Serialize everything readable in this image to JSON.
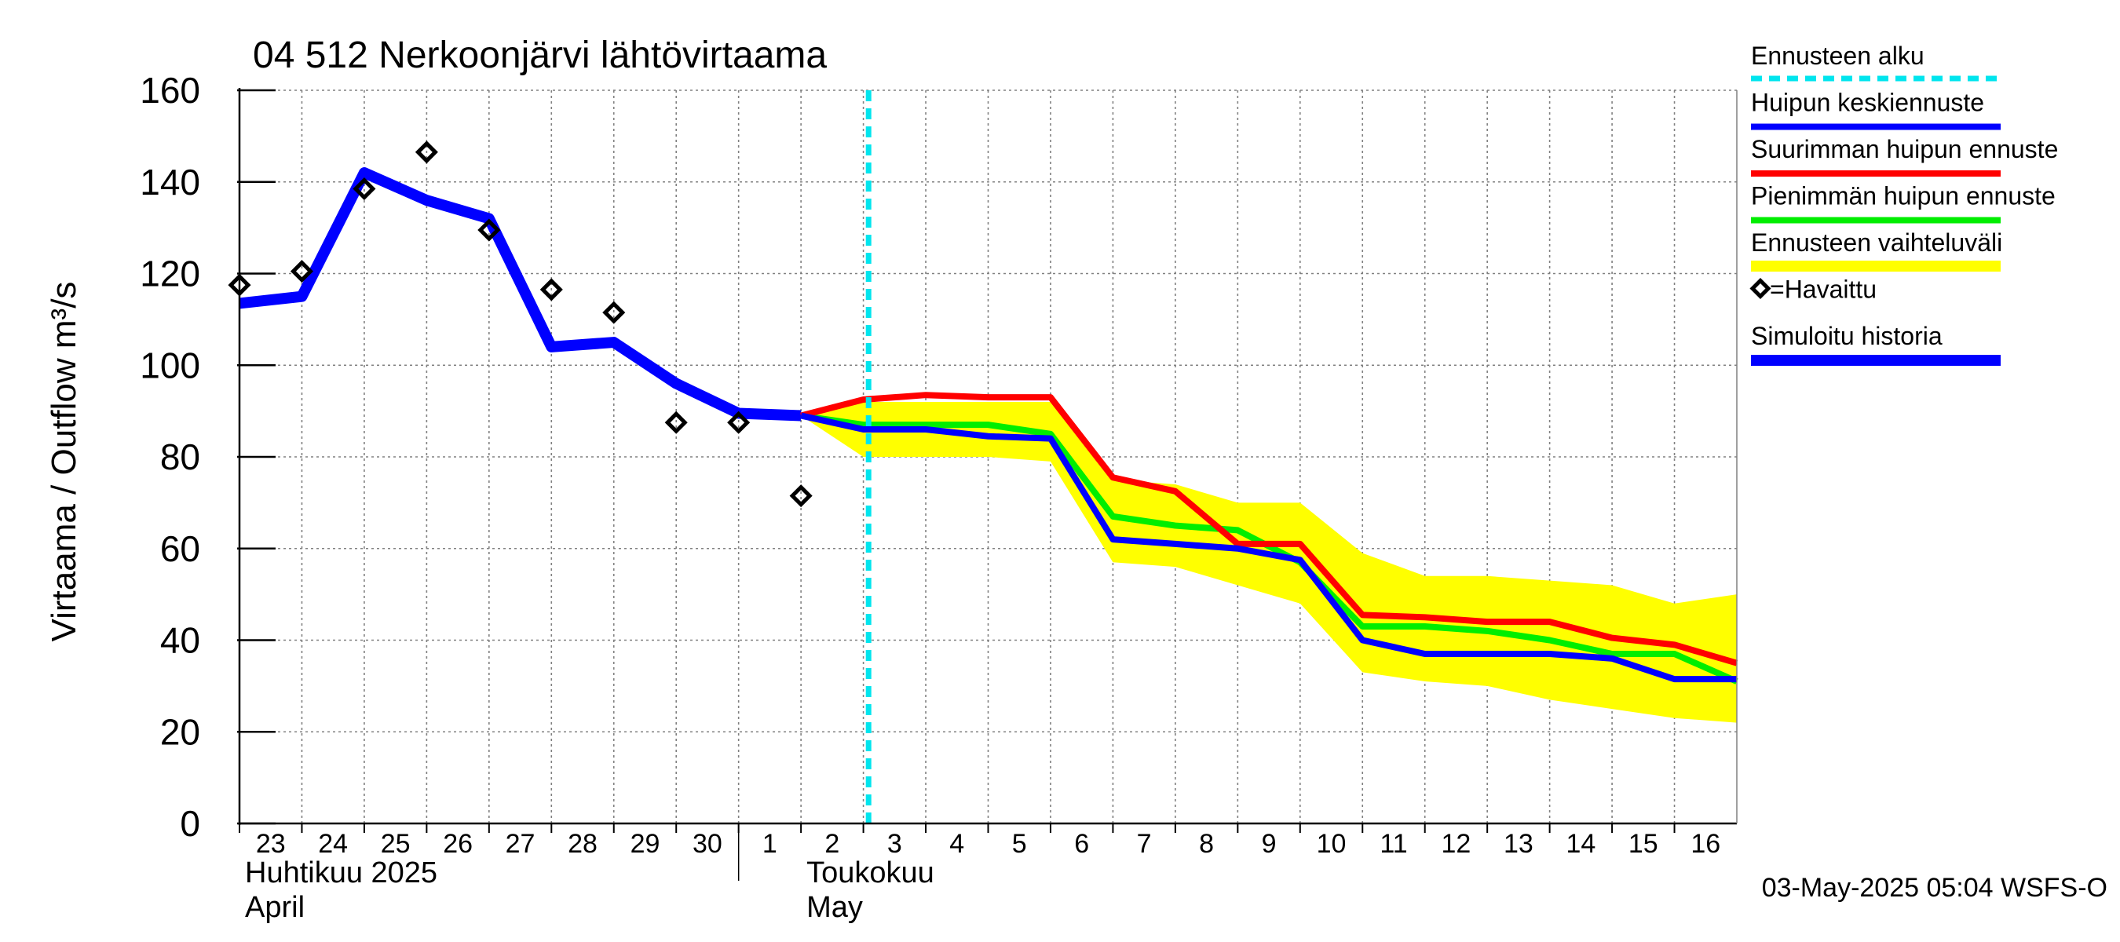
{
  "chart_data": {
    "type": "line",
    "title": "04 512 Nerkoonjärvi lähtövirtaama",
    "ylabel": "Virtaama / Outflow    m³/s",
    "ylim": [
      0,
      160
    ],
    "yticks": [
      0,
      20,
      40,
      60,
      80,
      100,
      120,
      140,
      160
    ],
    "x_start": "2025-04-23",
    "x_end": "2025-05-17",
    "day_ticks": [
      {
        "date": "2025-04-23",
        "label": "23"
      },
      {
        "date": "2025-04-24",
        "label": "24"
      },
      {
        "date": "2025-04-25",
        "label": "25"
      },
      {
        "date": "2025-04-26",
        "label": "26"
      },
      {
        "date": "2025-04-27",
        "label": "27"
      },
      {
        "date": "2025-04-28",
        "label": "28"
      },
      {
        "date": "2025-04-29",
        "label": "29"
      },
      {
        "date": "2025-04-30",
        "label": "30"
      },
      {
        "date": "2025-05-01",
        "label": "1"
      },
      {
        "date": "2025-05-02",
        "label": "2"
      },
      {
        "date": "2025-05-03",
        "label": "3"
      },
      {
        "date": "2025-05-04",
        "label": "4"
      },
      {
        "date": "2025-05-05",
        "label": "5"
      },
      {
        "date": "2025-05-06",
        "label": "6"
      },
      {
        "date": "2025-05-07",
        "label": "7"
      },
      {
        "date": "2025-05-08",
        "label": "8"
      },
      {
        "date": "2025-05-09",
        "label": "9"
      },
      {
        "date": "2025-05-10",
        "label": "10"
      },
      {
        "date": "2025-05-11",
        "label": "11"
      },
      {
        "date": "2025-05-12",
        "label": "12"
      },
      {
        "date": "2025-05-13",
        "label": "13"
      },
      {
        "date": "2025-05-14",
        "label": "14"
      },
      {
        "date": "2025-05-15",
        "label": "15"
      },
      {
        "date": "2025-05-16",
        "label": "16"
      }
    ],
    "month_labels": [
      {
        "date": "2025-04-23",
        "line1": "Huhtikuu  2025",
        "line2": "April"
      },
      {
        "date": "2025-05-02",
        "line1": "Toukokuu",
        "line2": "May"
      }
    ],
    "month_boundary": "2025-05-01",
    "forecast_start": "2025-05-03T02:00",
    "grid": true,
    "legend_position": "right",
    "series": [
      {
        "name": "Ennusteen vaihteluväli",
        "kind": "band",
        "color": "#ffff00",
        "x": [
          "2025-05-02",
          "2025-05-03",
          "2025-05-04",
          "2025-05-05",
          "2025-05-06",
          "2025-05-07",
          "2025-05-08",
          "2025-05-09",
          "2025-05-10",
          "2025-05-11",
          "2025-05-12",
          "2025-05-13",
          "2025-05-14",
          "2025-05-15",
          "2025-05-16",
          "2025-05-17"
        ],
        "upper": [
          89,
          92,
          92,
          92,
          92,
          75,
          74,
          70,
          70,
          59,
          54,
          54,
          53,
          52,
          48,
          50
        ],
        "lower": [
          89,
          80,
          80,
          80,
          79,
          57,
          56,
          52,
          48,
          33,
          31,
          30,
          27,
          25,
          23,
          22
        ]
      },
      {
        "name": "Simuloitu historia",
        "kind": "line",
        "color": "#0000ff",
        "width": 14,
        "x": [
          "2025-04-23",
          "2025-04-24",
          "2025-04-25",
          "2025-04-26",
          "2025-04-27",
          "2025-04-28",
          "2025-04-29",
          "2025-04-30",
          "2025-05-01",
          "2025-05-02"
        ],
        "values": [
          113.5,
          115,
          142,
          136,
          132,
          104,
          105,
          96,
          89.5,
          89
        ]
      },
      {
        "name": "Pienimmän huipun ennuste",
        "kind": "line",
        "color": "#00ee00",
        "width": 8,
        "x": [
          "2025-05-02",
          "2025-05-03",
          "2025-05-04",
          "2025-05-05",
          "2025-05-06",
          "2025-05-07",
          "2025-05-08",
          "2025-05-09",
          "2025-05-10",
          "2025-05-11",
          "2025-05-12",
          "2025-05-13",
          "2025-05-14",
          "2025-05-15",
          "2025-05-16",
          "2025-05-17"
        ],
        "values": [
          89,
          87,
          87,
          87,
          85,
          67,
          65,
          64,
          57,
          43,
          43,
          42,
          40,
          37,
          37,
          31
        ]
      },
      {
        "name": "Suurimman huipun ennuste",
        "kind": "line",
        "color": "#ff0000",
        "width": 8,
        "x": [
          "2025-05-02",
          "2025-05-03",
          "2025-05-04",
          "2025-05-05",
          "2025-05-06",
          "2025-05-07",
          "2025-05-08",
          "2025-05-09",
          "2025-05-10",
          "2025-05-11",
          "2025-05-12",
          "2025-05-13",
          "2025-05-14",
          "2025-05-15",
          "2025-05-16",
          "2025-05-17"
        ],
        "values": [
          89,
          92.5,
          93.5,
          93,
          93,
          75.5,
          72.5,
          61,
          61,
          45.5,
          45,
          44,
          44,
          40.5,
          39,
          35
        ]
      },
      {
        "name": "Huipun keskiennuste",
        "kind": "line",
        "color": "#0000ff",
        "width": 8,
        "x": [
          "2025-05-02",
          "2025-05-03",
          "2025-05-04",
          "2025-05-05",
          "2025-05-06",
          "2025-05-07",
          "2025-05-08",
          "2025-05-09",
          "2025-05-10",
          "2025-05-11",
          "2025-05-12",
          "2025-05-13",
          "2025-05-14",
          "2025-05-15",
          "2025-05-16",
          "2025-05-17"
        ],
        "values": [
          89,
          86,
          86,
          84.5,
          84,
          62,
          61,
          60,
          57.5,
          40,
          37,
          37,
          37,
          36,
          31.5,
          31.5
        ]
      },
      {
        "name": "=Havaittu",
        "kind": "scatter",
        "color": "#000000",
        "x": [
          "2025-04-23",
          "2025-04-24",
          "2025-04-25",
          "2025-04-26",
          "2025-04-27",
          "2025-04-28",
          "2025-04-29",
          "2025-04-30",
          "2025-05-01",
          "2025-05-02"
        ],
        "values": [
          117.5,
          120.5,
          138.5,
          146.5,
          129.5,
          116.5,
          111.5,
          87.5,
          87.5,
          71.5
        ]
      }
    ]
  },
  "legend": [
    {
      "label": "Ennusteen alku",
      "color": "#00e5ee",
      "style": "dashed"
    },
    {
      "label": "Huipun keskiennuste",
      "color": "#0000ff",
      "style": "solid"
    },
    {
      "label": "Suurimman huipun ennuste",
      "color": "#ff0000",
      "style": "solid"
    },
    {
      "label": "Pienimmän huipun ennuste",
      "color": "#00ee00",
      "style": "solid"
    },
    {
      "label": "Ennusteen vaihteluväli",
      "color": "#ffff00",
      "style": "band"
    },
    {
      "label": "=Havaittu",
      "color": "#000000",
      "style": "diamond"
    },
    {
      "label": "Simuloitu historia",
      "color": "#0000ff",
      "style": "solid"
    }
  ],
  "footer": "03-May-2025 05:04 WSFS-O"
}
